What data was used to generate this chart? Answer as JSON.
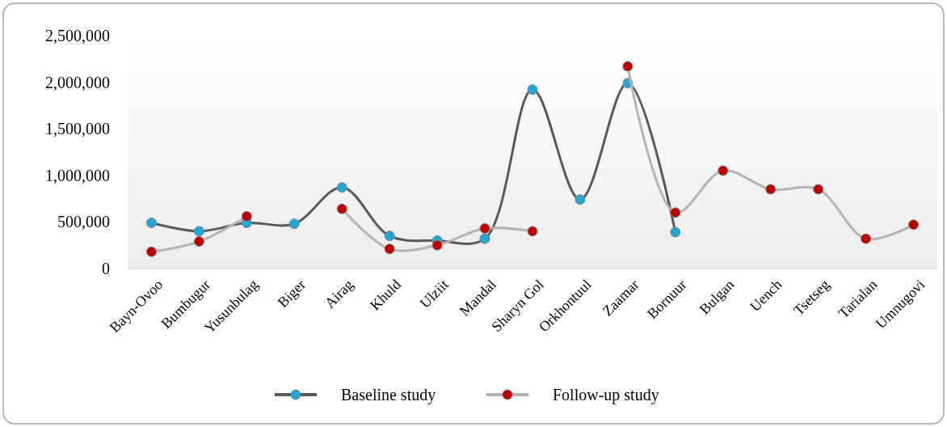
{
  "chart_data": {
    "type": "line",
    "categories": [
      "Bayn-Ovoo",
      "Bumbugur",
      "Yusunbulag",
      "Biger",
      "Airag",
      "Khuld",
      "Ulziit",
      "Mandal",
      "Sharyn Gol",
      "Orkhontuul",
      "Zaamar",
      "Bornuur",
      "Bulgan",
      "Uench",
      "Tsetseg",
      "Tarialan",
      "Umnugovi"
    ],
    "series": [
      {
        "name": "Baseline study",
        "color": "#595959",
        "colors": [
          "#1fa8d8",
          "#1fa8d8",
          "#1fa8d8",
          "#1fa8d8",
          "#1fa8d8",
          "#1fa8d8",
          "#1fa8d8",
          "#1fa8d8",
          "#1fa8d8",
          "#1fa8d8",
          "#1fa8d8",
          "#1fa8d8",
          null,
          null,
          null,
          null,
          null
        ],
        "values": [
          490000,
          400000,
          490000,
          480000,
          870000,
          350000,
          300000,
          320000,
          1920000,
          740000,
          1990000,
          390000,
          null,
          null,
          null,
          null,
          null
        ]
      },
      {
        "name": "Follow-up study",
        "color": "#b3b3b3",
        "colors": [
          "#c00000",
          "#c00000",
          "#c00000",
          null,
          "#c00000",
          "#c00000",
          "#c00000",
          "#c00000",
          "#c00000",
          null,
          "#c00000",
          "#c00000",
          "#c00000",
          "#c00000",
          "#c00000",
          "#c00000",
          "#c00000"
        ],
        "values": [
          180000,
          290000,
          560000,
          null,
          640000,
          210000,
          250000,
          430000,
          400000,
          null,
          2170000,
          600000,
          1050000,
          850000,
          850000,
          320000,
          470000
        ]
      }
    ],
    "ylim": [
      0,
      2500000
    ],
    "yticks": [
      {
        "value": 0,
        "label": "0"
      },
      {
        "value": 500000,
        "label": "500,000"
      },
      {
        "value": 1000000,
        "label": "1,000,000"
      },
      {
        "value": 1500000,
        "label": "1,500,000"
      },
      {
        "value": 2000000,
        "label": "2,000,000"
      },
      {
        "value": 2500000,
        "label": "2,500,000"
      }
    ],
    "grid": false,
    "legend": "bottom",
    "marker": "circle",
    "line_style": "solid"
  }
}
